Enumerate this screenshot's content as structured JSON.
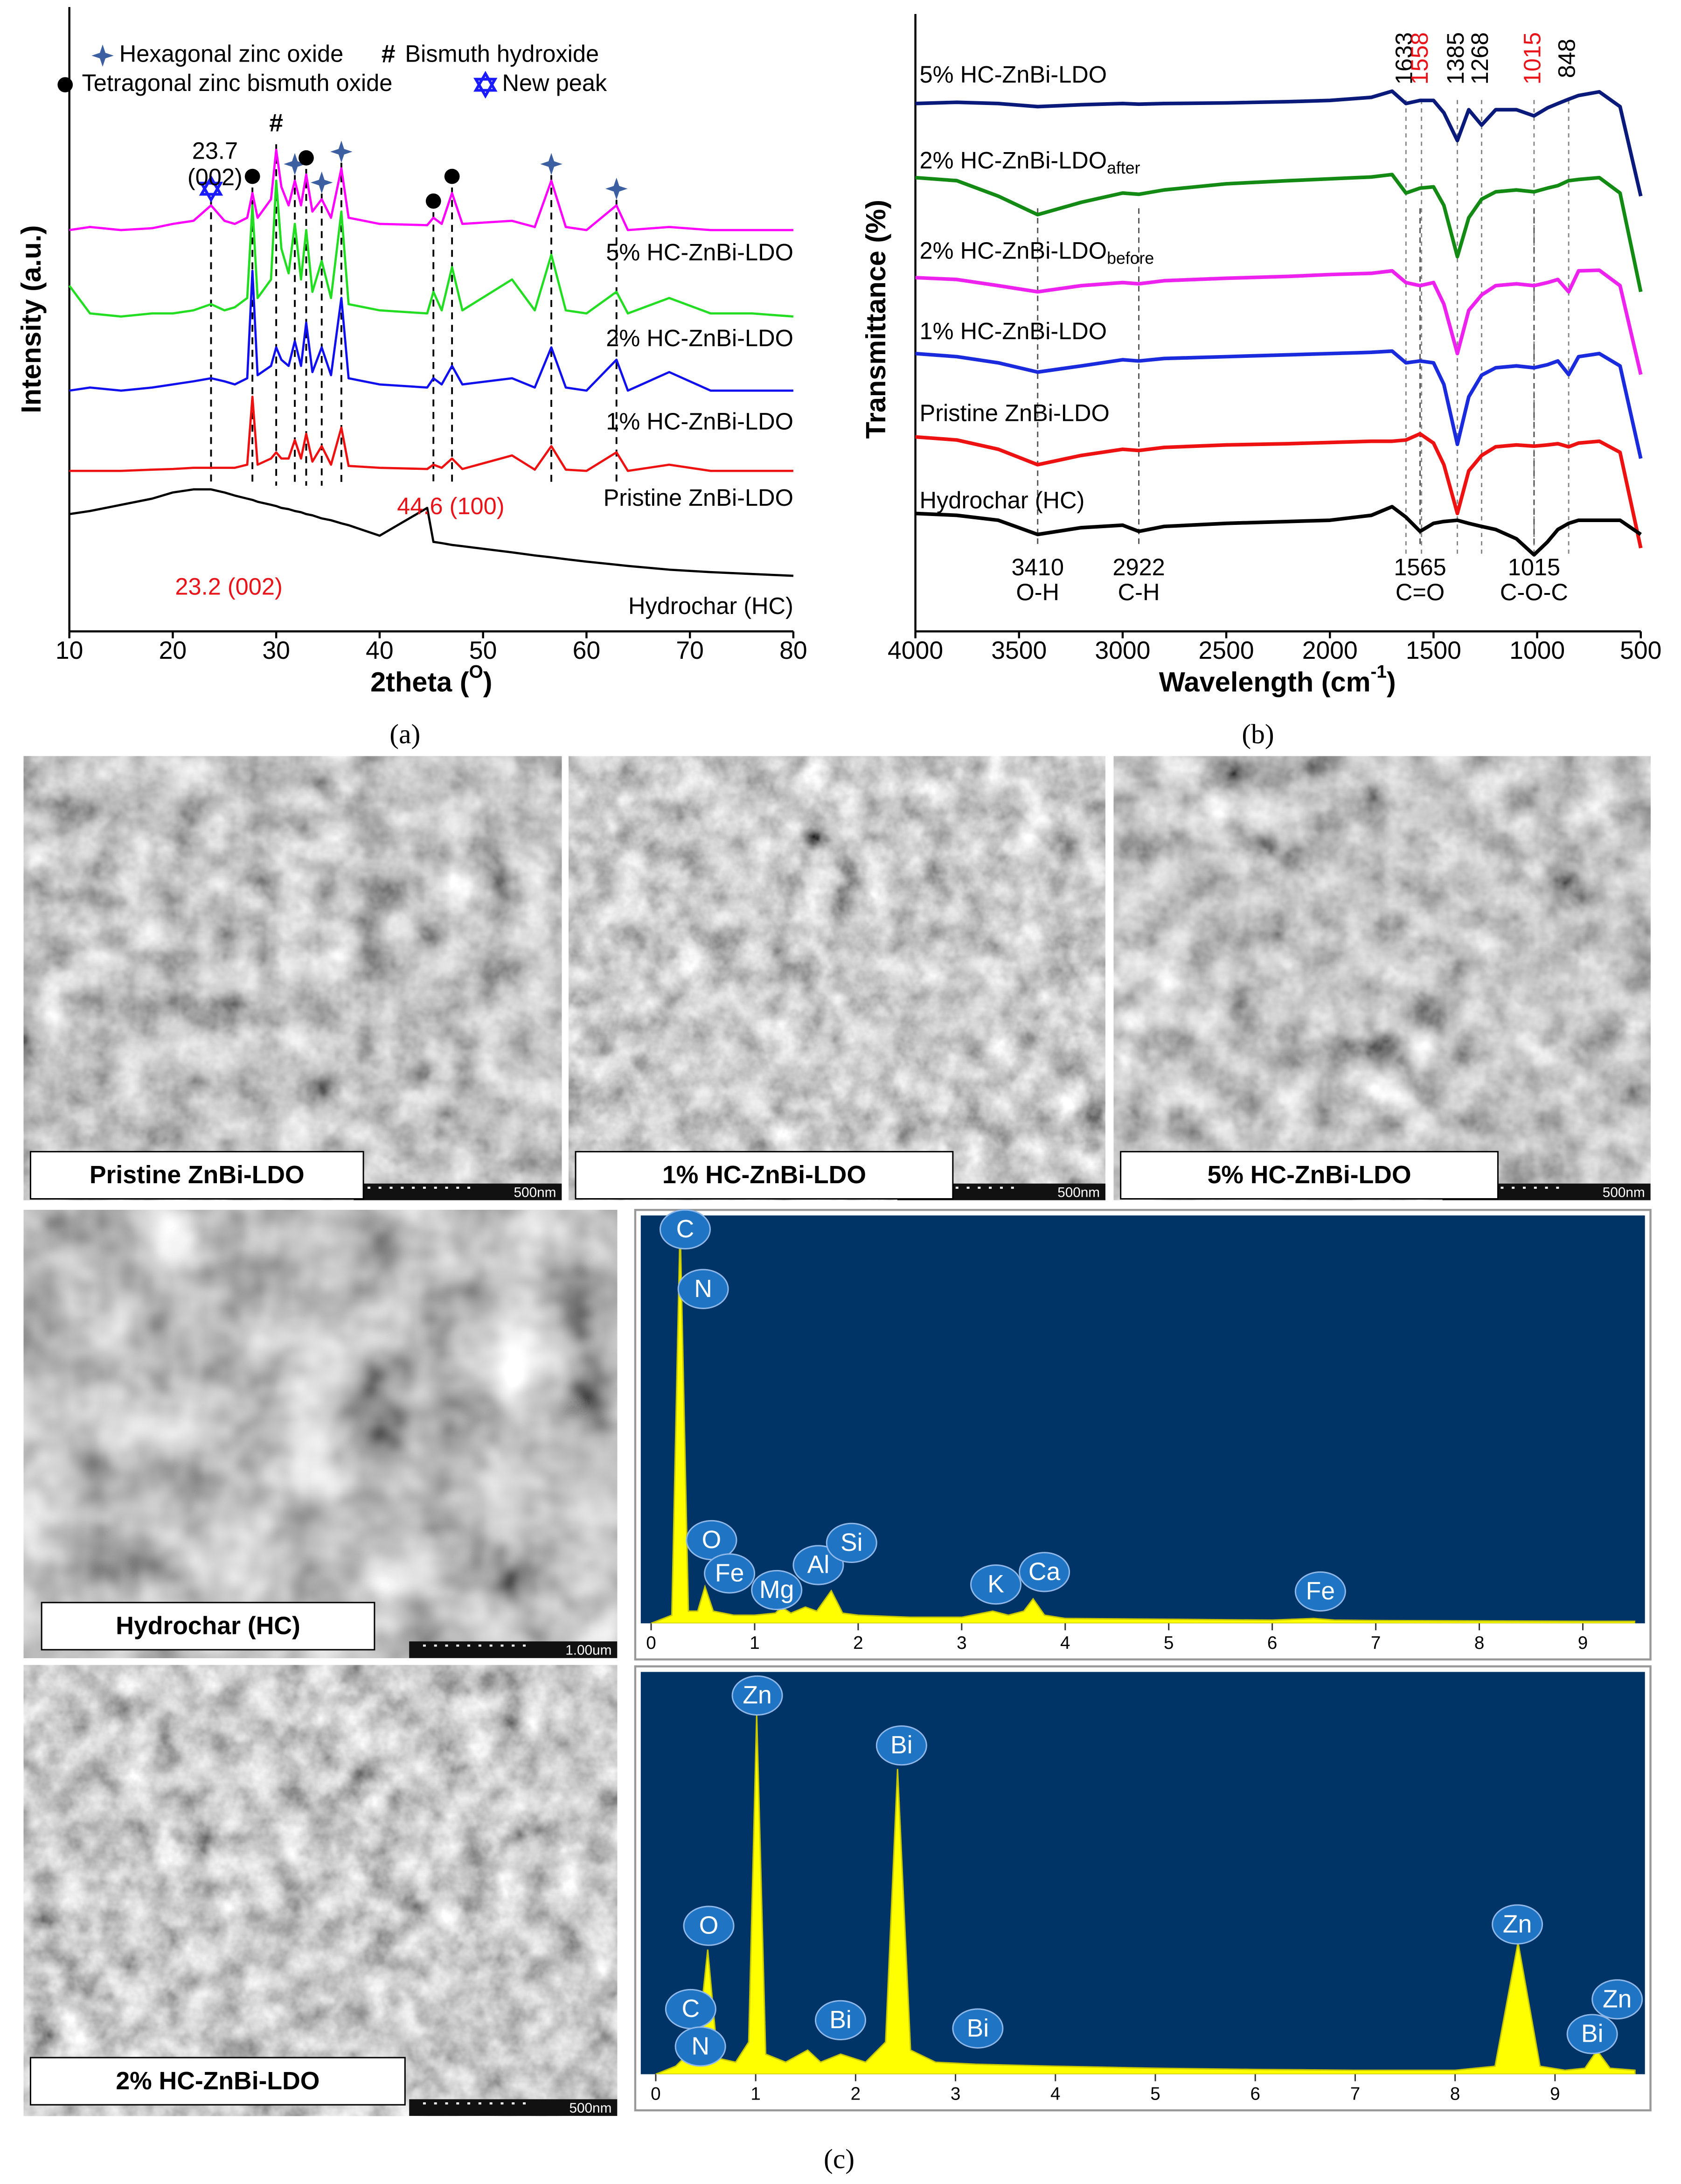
{
  "chart_data": [
    {
      "type": "line",
      "xlabel": "2theta (",
      "xlabel_sup": "O",
      "xlabel_end": ")",
      "ylabel": "Intensity (a.u.)",
      "xlim": [
        10,
        80
      ],
      "xticks": [
        10,
        20,
        30,
        40,
        50,
        60,
        70,
        80
      ],
      "ylim": [
        0,
        100
      ],
      "x": [
        10,
        12,
        15,
        18,
        20,
        22,
        23.7,
        25,
        26,
        27.2,
        27.7,
        28.2,
        29.5,
        30.0,
        30.5,
        31.2,
        31.8,
        32.4,
        32.9,
        33.5,
        34.4,
        35.3,
        36.3,
        37,
        40,
        44.6,
        45.2,
        46,
        47.0,
        48,
        52.8,
        55,
        56.6,
        58,
        60,
        62.9,
        64,
        68,
        72,
        76,
        80
      ],
      "series": [
        {
          "name": "5% HC-ZnBi-LDO",
          "color": "#ff00ff",
          "values": [
            65,
            65.5,
            65,
            65.3,
            66,
            66.5,
            69,
            66.5,
            66,
            67,
            71,
            67,
            70,
            78,
            72,
            69,
            73,
            69,
            74,
            68,
            70,
            67,
            75,
            67,
            66,
            65.8,
            67,
            66,
            71,
            66,
            66.5,
            65.5,
            73,
            65.5,
            65,
            69,
            65,
            65.5,
            65,
            65,
            65
          ]
        },
        {
          "name": "2% HC-ZnBi-LDO",
          "color": "#22dd22",
          "values": [
            56,
            51.5,
            51,
            51.5,
            51.5,
            52,
            53,
            52,
            52.5,
            54,
            69,
            54,
            57,
            73,
            62,
            58,
            66,
            57,
            65,
            55,
            60,
            54,
            68,
            53,
            52,
            51.5,
            55,
            52,
            59,
            52,
            57,
            52,
            61,
            52,
            51.5,
            55,
            51.5,
            54,
            51.5,
            51.5,
            51
          ]
        },
        {
          "name": "1% HC-ZnBi-LDO",
          "color": "#1010ee",
          "values": [
            39,
            39.5,
            39,
            39.5,
            40,
            40.5,
            41,
            40.5,
            40,
            41,
            58.4,
            41.5,
            43,
            46,
            44,
            43,
            47,
            43,
            50,
            42,
            46,
            41.5,
            54,
            41,
            40,
            39.5,
            41,
            40,
            43,
            40,
            41,
            39.5,
            46,
            39.5,
            39,
            44,
            39,
            42,
            39,
            39,
            39
          ]
        },
        {
          "name": "Pristine ZnBi-LDO",
          "color": "#ee1111",
          "values": [
            26,
            26,
            26,
            26.2,
            26.3,
            26.5,
            26.5,
            26.5,
            26.5,
            27,
            38,
            27,
            28,
            29,
            28,
            28,
            31,
            28,
            32,
            27.5,
            30,
            27,
            33,
            26.8,
            26.5,
            26.3,
            27,
            26.5,
            28,
            26.3,
            28.5,
            26.2,
            30,
            26.2,
            26,
            29,
            26,
            27,
            26,
            26,
            26
          ]
        },
        {
          "name": "Hydrochar (HC)",
          "color": "#000000",
          "values": [
            19,
            19.5,
            20.5,
            21.5,
            22.5,
            23,
            23,
            22.5,
            22,
            21.5,
            21.3,
            21,
            20.5,
            20.3,
            20,
            19.8,
            19.5,
            19.3,
            19,
            18.8,
            18.3,
            18,
            17.5,
            17.2,
            15.5,
            20,
            14.5,
            14.3,
            14,
            13.8,
            12.8,
            12.3,
            12,
            11.7,
            11.3,
            10.8,
            10.6,
            10,
            9.6,
            9.3,
            9
          ]
        }
      ],
      "markers": [
        {
          "x": 23.7,
          "symbol": "new"
        },
        {
          "x": 27.7,
          "symbol": "tet"
        },
        {
          "x": 30.0,
          "symbol": "#"
        },
        {
          "x": 31.8,
          "symbol": "hex"
        },
        {
          "x": 32.9,
          "symbol": "tet"
        },
        {
          "x": 34.4,
          "symbol": "hex"
        },
        {
          "x": 36.3,
          "symbol": "hex"
        },
        {
          "x": 45.2,
          "symbol": "tet"
        },
        {
          "x": 47.0,
          "symbol": "tet"
        },
        {
          "x": 56.6,
          "symbol": "hex"
        },
        {
          "x": 62.9,
          "symbol": "hex"
        }
      ],
      "legend": [
        {
          "symbol": "hex",
          "label": "Hexagonal zinc oxide"
        },
        {
          "symbol": "#",
          "label": "Bismuth hydroxide"
        },
        {
          "symbol": "tet",
          "label": "Tetragonal zinc bismuth oxide"
        },
        {
          "symbol": "new",
          "label": "New peak"
        }
      ],
      "annotations": [
        {
          "text": "23.7",
          "color": "#000000"
        },
        {
          "text": "(002)",
          "color": "#000000"
        },
        {
          "text": "44.6 (100)",
          "color": "#e8141a"
        },
        {
          "text": "23.2 (002)",
          "color": "#e8141a"
        }
      ]
    },
    {
      "type": "line",
      "xlabel": "Wavelength (cm",
      "xlabel_sup": "-1",
      "xlabel_end": ")",
      "ylabel": "Transmittance (%)",
      "xlim": [
        4000,
        500
      ],
      "xticks": [
        4000,
        3500,
        3000,
        2500,
        2000,
        1500,
        1000,
        500
      ],
      "ylim": [
        0,
        100
      ],
      "x": [
        4000,
        3800,
        3600,
        3410,
        3200,
        3000,
        2922,
        2800,
        2500,
        2200,
        2000,
        1800,
        1700,
        1633,
        1565,
        1500,
        1450,
        1385,
        1330,
        1268,
        1200,
        1100,
        1015,
        950,
        900,
        848,
        800,
        700,
        600,
        500
      ],
      "series": [
        {
          "name": "5% HC-ZnBi-LDO",
          "color": "#0a1a7a",
          "values": [
            85.5,
            85.7,
            85.5,
            85,
            85.3,
            85.5,
            85.4,
            85.5,
            85.6,
            85.8,
            86,
            86.5,
            87.5,
            85.5,
            86,
            86,
            84,
            79.5,
            84.5,
            82,
            84.5,
            84.5,
            83.5,
            84.8,
            85.5,
            86.2,
            86.8,
            87.4,
            85,
            70.5
          ]
        },
        {
          "name": "2% HC-ZnBi-LDO",
          "subscript": "after",
          "color": "#138a13",
          "values": [
            73.5,
            73,
            70.5,
            67.5,
            69.5,
            71,
            70.8,
            71.5,
            72.5,
            73,
            73.3,
            73.6,
            74,
            71,
            71.8,
            72,
            69,
            60.7,
            67,
            70,
            71.2,
            71.5,
            71.2,
            71.8,
            72.2,
            73,
            73.2,
            73.5,
            71,
            55
          ]
        },
        {
          "name": "2% HC-ZnBi-LDO",
          "subscript": "before",
          "color": "#ee22ee",
          "values": [
            57.3,
            57,
            56,
            55,
            56,
            56.5,
            56.3,
            56.8,
            57.2,
            57.5,
            57.8,
            58,
            58.4,
            56.5,
            56,
            56.5,
            53,
            45,
            52,
            54.5,
            56,
            56.3,
            56,
            56.5,
            57,
            55,
            58.4,
            58.5,
            56,
            41.6
          ]
        },
        {
          "name": "1% HC-ZnBi-LDO",
          "color": "#1a2bdd",
          "values": [
            45,
            44.5,
            43.5,
            42,
            43,
            44,
            43.8,
            44.2,
            44.5,
            44.8,
            45,
            45.2,
            45.4,
            43.5,
            43.8,
            43.5,
            40,
            30.3,
            38,
            41.5,
            42.7,
            43,
            42.7,
            43.2,
            43.8,
            41.6,
            44.5,
            45,
            43,
            28
          ]
        },
        {
          "name": "Pristine ZnBi-LDO",
          "color": "#ee1111",
          "values": [
            31.5,
            31,
            29.5,
            27,
            28.5,
            29.5,
            29.3,
            29.8,
            30.2,
            30.4,
            30.6,
            30.8,
            30.8,
            31,
            32,
            30.5,
            27,
            19.1,
            26,
            28.5,
            29.9,
            30.2,
            30,
            30.2,
            30.4,
            29.9,
            30.5,
            30.8,
            29,
            13.5
          ]
        },
        {
          "name": "Hydrochar (HC)",
          "color": "#000000",
          "values": [
            19.1,
            18.8,
            18,
            15.7,
            16.8,
            17.2,
            16.2,
            17,
            17.5,
            17.8,
            18,
            18.8,
            20.2,
            18.5,
            16.2,
            17.5,
            17.8,
            18,
            17.5,
            17,
            16.5,
            15,
            12.4,
            14.5,
            16.5,
            17.5,
            18,
            18,
            18,
            15.7
          ]
        }
      ],
      "peaks_top": [
        {
          "value": 1633,
          "color": "#000000"
        },
        {
          "value": 1558,
          "color": "#e8141a"
        },
        {
          "value": 1385,
          "color": "#000000"
        },
        {
          "value": 1268,
          "color": "#000000"
        },
        {
          "value": 1015,
          "color": "#e8141a"
        },
        {
          "value": 848,
          "color": "#000000"
        }
      ],
      "peaks_bottom": [
        {
          "value": 3410,
          "group": "O-H"
        },
        {
          "value": 2922,
          "group": "C-H"
        },
        {
          "value": 1565,
          "group": "C=O"
        },
        {
          "value": 1015,
          "group": "C-O-C"
        }
      ]
    },
    {
      "type": "area",
      "color": "#ffff00",
      "xlim": [
        -0.1,
        9.6
      ],
      "xticks": [
        0,
        1,
        2,
        3,
        4,
        5,
        6,
        7,
        8,
        9
      ],
      "ylim": [
        0,
        100
      ],
      "x": [
        0,
        0.2,
        0.28,
        0.36,
        0.45,
        0.52,
        0.6,
        0.8,
        1.0,
        1.2,
        1.26,
        1.35,
        1.49,
        1.6,
        1.74,
        1.85,
        2.0,
        2.5,
        3.0,
        3.3,
        3.45,
        3.6,
        3.69,
        3.8,
        4.0,
        5,
        6,
        6.4,
        6.6,
        7,
        8,
        9,
        9.5
      ],
      "values": [
        0,
        2,
        98,
        3,
        3,
        9,
        3,
        2,
        2,
        2.5,
        4,
        2.5,
        4,
        3,
        8,
        2.5,
        2,
        1.5,
        1.5,
        3,
        2,
        3,
        6,
        2,
        1.2,
        1,
        0.8,
        1.2,
        0.8,
        0.7,
        0.6,
        0.5,
        0.5
      ],
      "elements": [
        "C",
        "N",
        "O",
        "Fe",
        "Mg",
        "Al",
        "Si",
        "K",
        "Ca",
        "Fe"
      ]
    },
    {
      "type": "area",
      "color": "#ffff00",
      "xlim": [
        -0.15,
        9.9
      ],
      "xticks": [
        0,
        1,
        2,
        3,
        4,
        5,
        6,
        7,
        8,
        9
      ],
      "ylim": [
        0,
        100
      ],
      "x": [
        0,
        0.2,
        0.28,
        0.4,
        0.52,
        0.62,
        0.8,
        0.93,
        1.01,
        1.1,
        1.3,
        1.52,
        1.65,
        1.85,
        2.1,
        2.3,
        2.42,
        2.55,
        2.8,
        3.2,
        4,
        5,
        6,
        7,
        8,
        8.4,
        8.63,
        8.85,
        9.1,
        9.3,
        9.42,
        9.55,
        9.8
      ],
      "values": [
        0,
        2,
        4,
        3,
        31,
        4,
        3,
        8,
        89.7,
        5,
        3,
        6,
        3,
        5,
        3,
        8,
        75.9,
        6,
        3,
        2.5,
        2,
        1.5,
        1.2,
        1,
        1,
        2,
        32.8,
        2,
        1,
        1.5,
        5.9,
        1.5,
        1
      ],
      "elements": [
        "Zn",
        "Bi",
        "O",
        "C",
        "N",
        "Bi",
        "Bi",
        "Zn",
        "Zn",
        "Bi"
      ]
    }
  ],
  "sem_images": [
    {
      "label": "Pristine ZnBi-LDO",
      "scale": "500nm"
    },
    {
      "label": "1% HC-ZnBi-LDO",
      "scale": "500nm"
    },
    {
      "label": "5% HC-ZnBi-LDO",
      "scale": "500nm"
    },
    {
      "label": "Hydrochar (HC)",
      "scale": "1.00um"
    },
    {
      "label": "2% HC-ZnBi-LDO",
      "scale": "500nm"
    }
  ],
  "captions": [
    "(a)",
    "(b)",
    "(c)"
  ]
}
